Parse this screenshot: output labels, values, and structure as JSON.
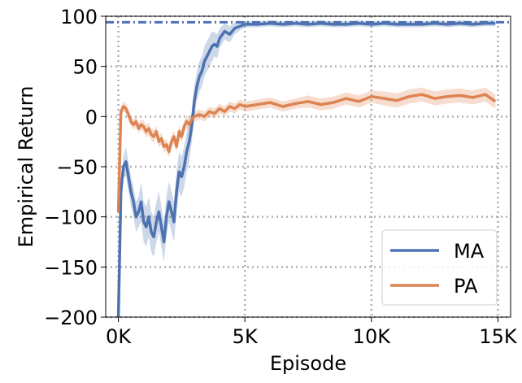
{
  "chart_data": {
    "type": "line",
    "title": "",
    "xlabel": "Episode",
    "ylabel": "Empirical Return",
    "xlim": [
      -500,
      15500
    ],
    "ylim": [
      -200,
      100
    ],
    "x_ticks": [
      0,
      5000,
      10000,
      15000
    ],
    "x_tick_labels": [
      "0K",
      "5K",
      "10K",
      "15K"
    ],
    "y_ticks": [
      -200,
      -150,
      -100,
      -50,
      0,
      50,
      100
    ],
    "y_tick_labels": [
      "−200",
      "−150",
      "−100",
      "−50",
      "0",
      "50",
      "100"
    ],
    "grid": true,
    "legend_position": "bottom-right",
    "reference_line": {
      "y": 94,
      "style": "dash-dot",
      "color": "#4c72b0"
    },
    "series": [
      {
        "name": "MA",
        "color": "#4c72b0",
        "x": [
          0,
          100,
          200,
          300,
          400,
          500,
          600,
          700,
          800,
          900,
          1000,
          1100,
          1200,
          1300,
          1400,
          1500,
          1600,
          1700,
          1800,
          1900,
          2000,
          2100,
          2200,
          2300,
          2400,
          2500,
          2600,
          2700,
          2800,
          2900,
          3000,
          3100,
          3200,
          3300,
          3400,
          3500,
          3600,
          3700,
          3800,
          3900,
          4000,
          4200,
          4400,
          4600,
          4800,
          5000,
          5500,
          6000,
          6500,
          7000,
          7500,
          8000,
          8500,
          9000,
          9500,
          10000,
          10500,
          11000,
          11500,
          12000,
          12500,
          13000,
          13500,
          14000,
          14500,
          14900
        ],
        "values": [
          -200,
          -75,
          -50,
          -45,
          -60,
          -75,
          -85,
          -100,
          -95,
          -85,
          -105,
          -110,
          -100,
          -115,
          -120,
          -105,
          -95,
          -110,
          -125,
          -100,
          -85,
          -95,
          -105,
          -75,
          -55,
          -60,
          -50,
          -35,
          -25,
          -10,
          15,
          30,
          40,
          45,
          55,
          60,
          65,
          70,
          72,
          70,
          78,
          85,
          82,
          88,
          90,
          92,
          92,
          93,
          92,
          93,
          92,
          93,
          92,
          92,
          93,
          92,
          93,
          92,
          92,
          92,
          93,
          92,
          93,
          92,
          93,
          93
        ],
        "band": [
          0,
          5,
          10,
          15,
          15,
          15,
          15,
          15,
          15,
          20,
          20,
          20,
          20,
          20,
          20,
          20,
          20,
          20,
          20,
          20,
          20,
          20,
          20,
          20,
          20,
          20,
          20,
          20,
          20,
          15,
          15,
          15,
          15,
          15,
          15,
          15,
          15,
          15,
          12,
          12,
          10,
          8,
          8,
          6,
          4,
          3,
          3,
          3,
          3,
          3,
          3,
          3,
          3,
          3,
          3,
          3,
          3,
          3,
          3,
          3,
          3,
          3,
          3,
          3,
          3,
          3
        ]
      },
      {
        "name": "PA",
        "color": "#dd8452",
        "x": [
          0,
          100,
          200,
          300,
          400,
          500,
          600,
          700,
          800,
          900,
          1000,
          1100,
          1200,
          1300,
          1400,
          1500,
          1600,
          1700,
          1800,
          1900,
          2000,
          2100,
          2200,
          2300,
          2400,
          2500,
          2600,
          2700,
          2800,
          2900,
          3000,
          3200,
          3400,
          3600,
          3800,
          4000,
          4200,
          4400,
          4600,
          4800,
          5000,
          5500,
          6000,
          6500,
          7000,
          7500,
          8000,
          8500,
          9000,
          9500,
          10000,
          10500,
          11000,
          11500,
          12000,
          12500,
          13000,
          13500,
          14000,
          14500,
          14900
        ],
        "values": [
          -95,
          5,
          10,
          8,
          2,
          -5,
          -8,
          -5,
          -12,
          -8,
          -10,
          -15,
          -12,
          -18,
          -20,
          -15,
          -25,
          -22,
          -30,
          -28,
          -35,
          -25,
          -20,
          -30,
          -15,
          -20,
          -10,
          -5,
          -8,
          -3,
          0,
          2,
          0,
          5,
          3,
          8,
          5,
          10,
          8,
          12,
          10,
          12,
          14,
          10,
          13,
          15,
          12,
          14,
          18,
          15,
          20,
          18,
          16,
          20,
          22,
          18,
          20,
          21,
          19,
          22,
          15
        ],
        "band": [
          5,
          5,
          5,
          5,
          5,
          5,
          5,
          5,
          5,
          5,
          6,
          6,
          6,
          6,
          6,
          6,
          6,
          6,
          6,
          6,
          6,
          6,
          6,
          6,
          6,
          6,
          6,
          6,
          6,
          6,
          5,
          5,
          5,
          5,
          5,
          5,
          5,
          5,
          5,
          5,
          5,
          5,
          5,
          5,
          5,
          6,
          6,
          6,
          6,
          6,
          6,
          7,
          7,
          7,
          7,
          7,
          7,
          7,
          7,
          7,
          7
        ]
      }
    ]
  }
}
